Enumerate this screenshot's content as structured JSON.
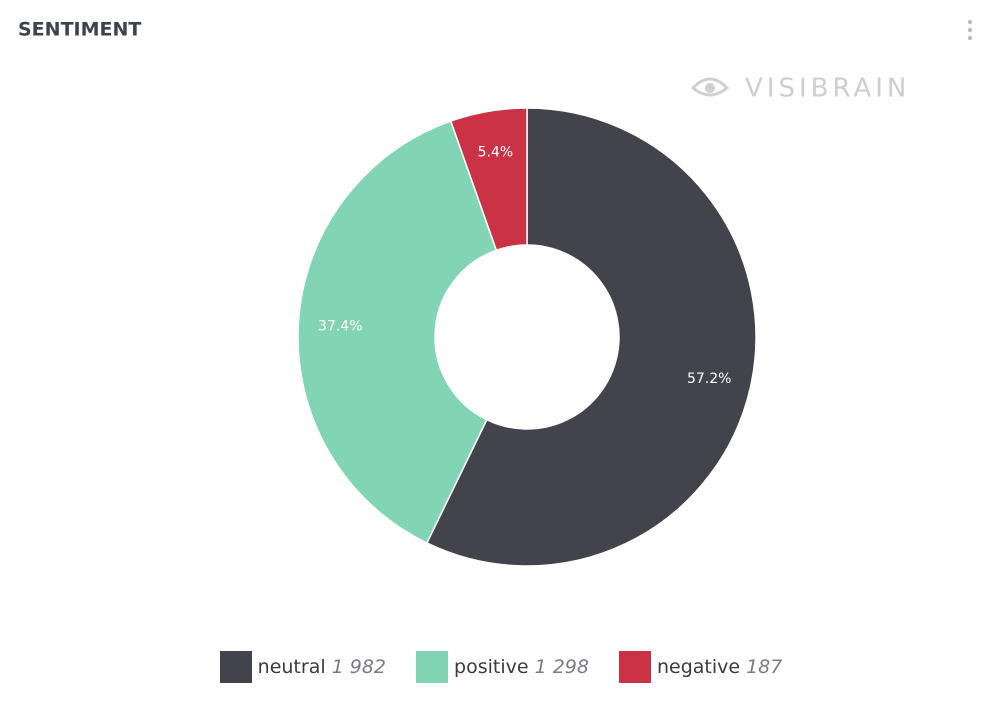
{
  "chart_data": {
    "type": "pie",
    "title": "SENTIMENT",
    "watermark": "VISIBRAIN",
    "categories": [
      "neutral",
      "positive",
      "negative"
    ],
    "values": [
      57.2,
      37.4,
      5.4
    ],
    "value_labels": [
      "57.2%",
      "37.4%",
      "5.4%"
    ],
    "counts": [
      1982,
      1298,
      187
    ],
    "count_labels": [
      "1 982",
      "1 298",
      "187"
    ],
    "colors": [
      "#43434b",
      "#81d5b4",
      "#cc3246"
    ],
    "donut": true
  }
}
